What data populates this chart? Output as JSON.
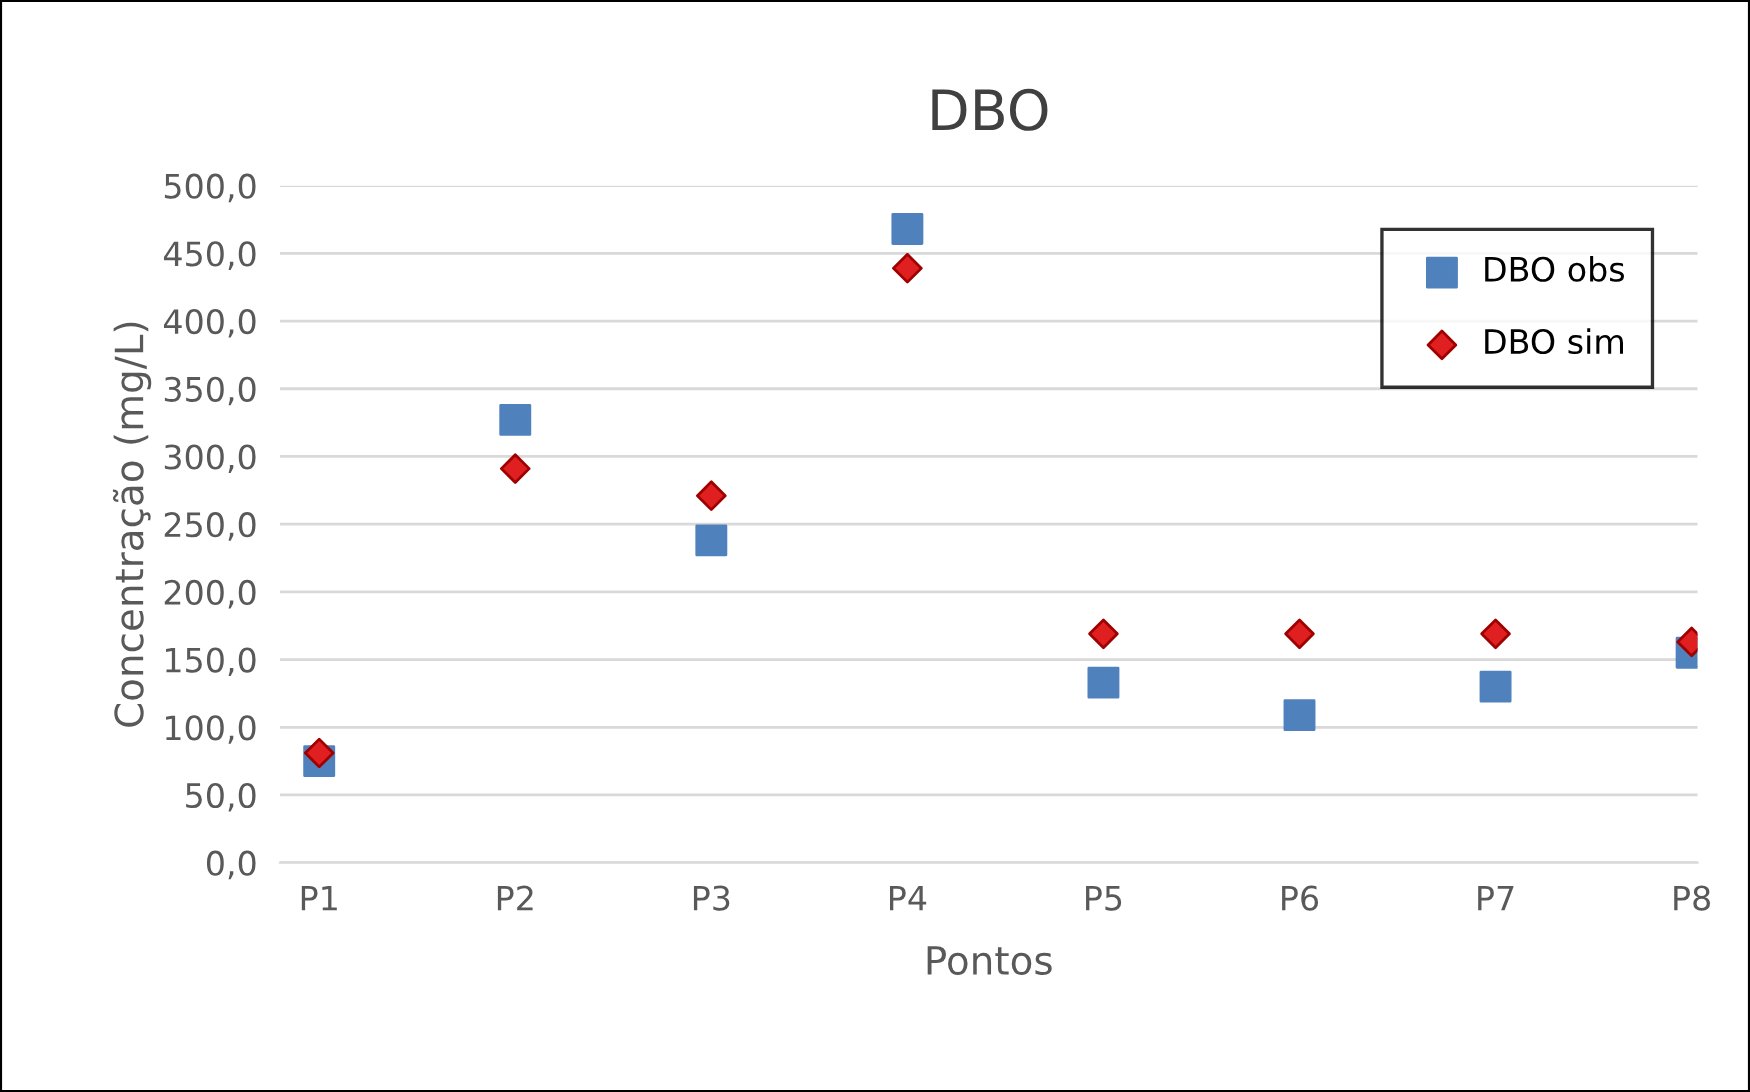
{
  "chart_data": {
    "type": "scatter",
    "title": "DBO",
    "xlabel": "Pontos",
    "ylabel": "Concentração (mg/L)",
    "categories": [
      "P1",
      "P2",
      "P3",
      "P4",
      "P5",
      "P6",
      "P7",
      "P8"
    ],
    "series": [
      {
        "name": "DBO obs",
        "color": "#4f81bd",
        "marker": "square",
        "values": [
          75,
          327,
          238,
          468,
          133,
          109,
          130,
          155
        ]
      },
      {
        "name": "DBO sim",
        "color": "#e02020",
        "marker": "diamond",
        "values": [
          81,
          291,
          271,
          439,
          169,
          169,
          169,
          163
        ]
      }
    ],
    "ylim": [
      0,
      500
    ],
    "yticks": [
      {
        "value": 0,
        "label": "0,0"
      },
      {
        "value": 50,
        "label": "50,0"
      },
      {
        "value": 100,
        "label": "100,0"
      },
      {
        "value": 150,
        "label": "150,0"
      },
      {
        "value": 200,
        "label": "200,0"
      },
      {
        "value": 250,
        "label": "250,0"
      },
      {
        "value": 300,
        "label": "300,0"
      },
      {
        "value": 350,
        "label": "350,0"
      },
      {
        "value": 400,
        "label": "400,0"
      },
      {
        "value": 450,
        "label": "450,0"
      },
      {
        "value": 500,
        "label": "500,0"
      }
    ],
    "grid": "y",
    "legend": "top right"
  }
}
